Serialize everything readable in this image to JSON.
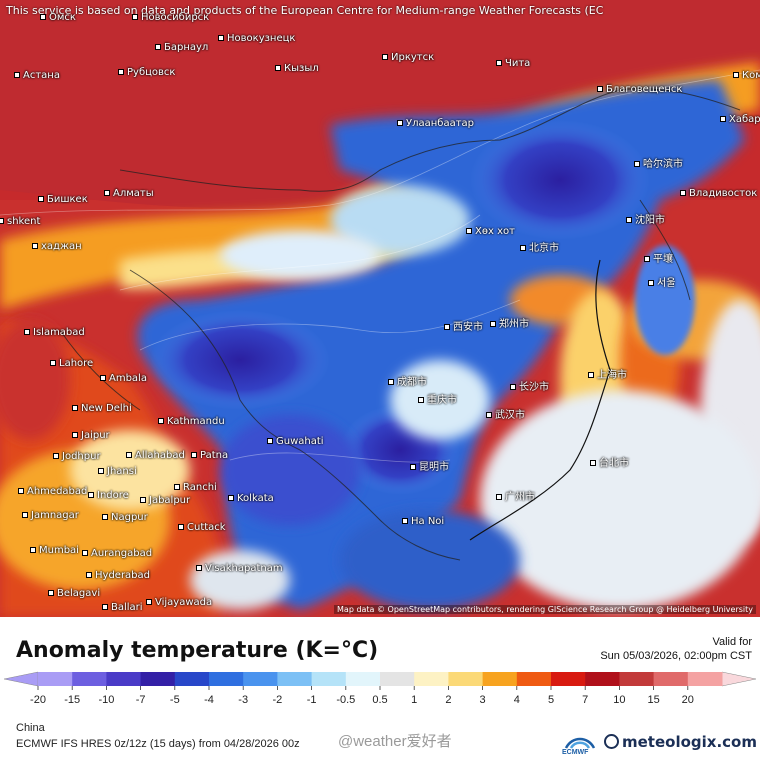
{
  "notice": "This service is based on data and products of the European Centre for Medium-range Weather Forecasts (EC",
  "attribution": "Map data © OpenStreetMap contributors, rendering GIScience Research Group @ Heidelberg University",
  "cities": [
    {
      "name": "Омск"
    },
    {
      "name": "Новосибирск"
    },
    {
      "name": "Барнаул"
    },
    {
      "name": "Новокузнецк"
    },
    {
      "name": "Иркутск"
    },
    {
      "name": "Чита"
    },
    {
      "name": "Астана"
    },
    {
      "name": "Рубцовск"
    },
    {
      "name": "Кызыл"
    },
    {
      "name": "Благовещенск"
    },
    {
      "name": "Хабаро"
    },
    {
      "name": "Комс"
    },
    {
      "name": "Улаанбаатар"
    },
    {
      "name": "Бишкек"
    },
    {
      "name": "Алматы"
    },
    {
      "name": "Владивосток"
    },
    {
      "name": "shkent"
    },
    {
      "name": "хаджан"
    },
    {
      "name": "Хөх хот"
    },
    {
      "name": "北京市"
    },
    {
      "name": "沈阳市"
    },
    {
      "name": "哈尔滨市"
    },
    {
      "name": "平壤"
    },
    {
      "name": "서울"
    },
    {
      "name": "Islamabad"
    },
    {
      "name": "Lahore"
    },
    {
      "name": "Ambala"
    },
    {
      "name": "New Delhi"
    },
    {
      "name": "Kathmandu"
    },
    {
      "name": "Guwahati"
    },
    {
      "name": "Jaipur"
    },
    {
      "name": "Jodhpur"
    },
    {
      "name": "Allahabad"
    },
    {
      "name": "Patna"
    },
    {
      "name": "Jhansi"
    },
    {
      "name": "Ranchi"
    },
    {
      "name": "Ahmedabad"
    },
    {
      "name": "Indore"
    },
    {
      "name": "Jabalpur"
    },
    {
      "name": "Kolkata"
    },
    {
      "name": "Jamnagar"
    },
    {
      "name": "Nagpur"
    },
    {
      "name": "Cuttack"
    },
    {
      "name": "Mumbai"
    },
    {
      "name": "Aurangabad"
    },
    {
      "name": "Hyderabad"
    },
    {
      "name": "Visakhapatnam"
    },
    {
      "name": "Belagavi"
    },
    {
      "name": "Ballari"
    },
    {
      "name": "Vijayawada"
    },
    {
      "name": "Ha Noi"
    },
    {
      "name": "上海市"
    },
    {
      "name": "台北市"
    },
    {
      "name": "武汉市"
    },
    {
      "name": "昆明市"
    },
    {
      "name": "郑州市"
    },
    {
      "name": "西安市"
    },
    {
      "name": "成都市"
    },
    {
      "name": "重庆市"
    },
    {
      "name": "长沙市"
    },
    {
      "name": "广州市"
    }
  ],
  "title": "Anomaly temperature (K=°C)",
  "valid_for": "Valid for",
  "valid_time": "Sun 05/03/2026, 02:00pm CST",
  "legend": {
    "ticks": [
      "-20",
      "-15",
      "-10",
      "-7",
      "-5",
      "-4",
      "-3",
      "-2",
      "-1",
      "-0.5",
      "0.5",
      "1",
      "2",
      "3",
      "4",
      "5",
      "7",
      "10",
      "15",
      "20"
    ],
    "colors": [
      "#a99cf5",
      "#6d5fe0",
      "#4a3bc7",
      "#3320a6",
      "#2847c9",
      "#2f6fe0",
      "#4a93ee",
      "#7cc0f5",
      "#b5e3f8",
      "#e2f5fb",
      "#e4e4e4",
      "#fdf2c4",
      "#fbd977",
      "#f7a31f",
      "#ef5a12",
      "#d81a10",
      "#b0101a",
      "#c23a3a",
      "#e06a6a",
      "#f4a2a2"
    ]
  },
  "region": "China",
  "model": "ECMWF IFS HRES 0z/12z (15 days) from 04/28/2026 00z",
  "watermark": "@weather爱好者",
  "brand": "meteologix.com",
  "ecmwf": "ECMWF"
}
